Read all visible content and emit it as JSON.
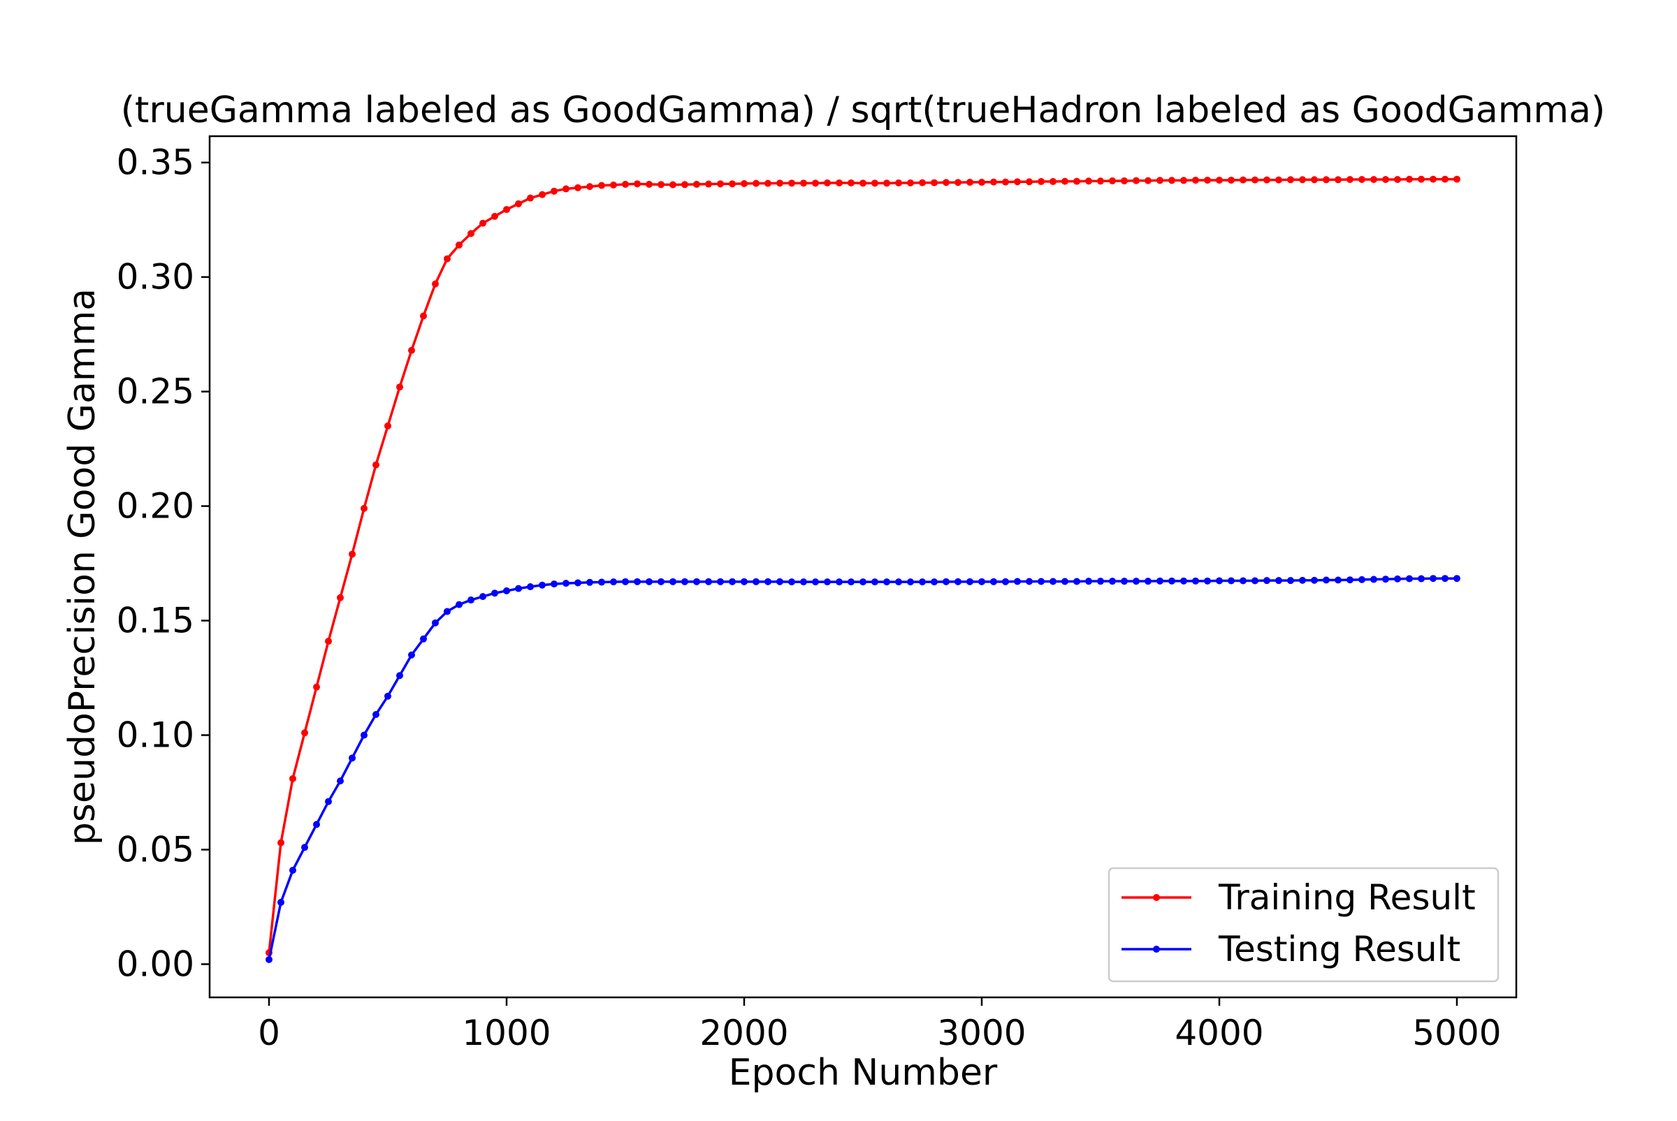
{
  "chart_data": {
    "type": "line",
    "title": "(trueGamma labeled as GoodGamma) / sqrt(trueHadron labeled as GoodGamma)",
    "xlabel": "Epoch Number",
    "ylabel": "pseudoPrecision Good Gamma",
    "xlim": [
      -250,
      5250
    ],
    "ylim": [
      -0.0145,
      0.3615
    ],
    "xticks": [
      0,
      1000,
      2000,
      3000,
      4000,
      5000
    ],
    "xtick_labels": [
      "0",
      "1000",
      "2000",
      "3000",
      "4000",
      "5000"
    ],
    "yticks": [
      0.0,
      0.05,
      0.1,
      0.15,
      0.2,
      0.25,
      0.3,
      0.35
    ],
    "ytick_labels": [
      "0.00",
      "0.05",
      "0.10",
      "0.15",
      "0.20",
      "0.25",
      "0.30",
      "0.35"
    ],
    "grid": false,
    "legend_position": "lower-right",
    "series": [
      {
        "name": "Training Result",
        "color": "#ff0000",
        "x": [
          0,
          50,
          100,
          150,
          200,
          250,
          300,
          350,
          400,
          450,
          500,
          550,
          600,
          650,
          700,
          750,
          800,
          850,
          900,
          950,
          1000,
          1050,
          1100,
          1150,
          1200,
          1250,
          1300,
          1350,
          1400,
          1450,
          1500,
          1550,
          1600,
          1650,
          1700,
          1750,
          1800,
          1850,
          1900,
          1950,
          2000,
          2050,
          2100,
          2150,
          2200,
          2250,
          2300,
          2350,
          2400,
          2450,
          2500,
          2550,
          2600,
          2650,
          2700,
          2750,
          2800,
          2850,
          2900,
          2950,
          3000,
          3050,
          3100,
          3150,
          3200,
          3250,
          3300,
          3350,
          3400,
          3450,
          3500,
          3550,
          3600,
          3650,
          3700,
          3750,
          3800,
          3850,
          3900,
          3950,
          4000,
          4050,
          4100,
          4150,
          4200,
          4250,
          4300,
          4350,
          4400,
          4450,
          4500,
          4550,
          4600,
          4650,
          4700,
          4750,
          4800,
          4850,
          4900,
          4950,
          5000
        ],
        "values": [
          0.005,
          0.053,
          0.081,
          0.101,
          0.121,
          0.141,
          0.16,
          0.179,
          0.199,
          0.218,
          0.235,
          0.252,
          0.268,
          0.283,
          0.297,
          0.308,
          0.314,
          0.319,
          0.3235,
          0.3265,
          0.3295,
          0.332,
          0.3345,
          0.336,
          0.3375,
          0.3385,
          0.339,
          0.3395,
          0.34,
          0.3402,
          0.3405,
          0.3407,
          0.3405,
          0.3404,
          0.3403,
          0.3404,
          0.3405,
          0.3406,
          0.3407,
          0.3407,
          0.3408,
          0.3409,
          0.3409,
          0.341,
          0.341,
          0.341,
          0.341,
          0.3411,
          0.3411,
          0.3411,
          0.341,
          0.341,
          0.341,
          0.3411,
          0.3411,
          0.3412,
          0.3412,
          0.3413,
          0.3413,
          0.3414,
          0.3414,
          0.3415,
          0.3415,
          0.3416,
          0.3416,
          0.3417,
          0.3417,
          0.3418,
          0.3418,
          0.3419,
          0.3419,
          0.342,
          0.342,
          0.3421,
          0.3421,
          0.3422,
          0.3422,
          0.3422,
          0.3423,
          0.3423,
          0.3423,
          0.3423,
          0.3424,
          0.3424,
          0.3424,
          0.3424,
          0.3425,
          0.3425,
          0.3425,
          0.3425,
          0.3425,
          0.3426,
          0.3426,
          0.3426,
          0.3426,
          0.3426,
          0.3427,
          0.3427,
          0.3427,
          0.3427,
          0.3427
        ]
      },
      {
        "name": "Testing Result",
        "color": "#0000ff",
        "x": [
          0,
          50,
          100,
          150,
          200,
          250,
          300,
          350,
          400,
          450,
          500,
          550,
          600,
          650,
          700,
          750,
          800,
          850,
          900,
          950,
          1000,
          1050,
          1100,
          1150,
          1200,
          1250,
          1300,
          1350,
          1400,
          1450,
          1500,
          1550,
          1600,
          1650,
          1700,
          1750,
          1800,
          1850,
          1900,
          1950,
          2000,
          2050,
          2100,
          2150,
          2200,
          2250,
          2300,
          2350,
          2400,
          2450,
          2500,
          2550,
          2600,
          2650,
          2700,
          2750,
          2800,
          2850,
          2900,
          2950,
          3000,
          3050,
          3100,
          3150,
          3200,
          3250,
          3300,
          3350,
          3400,
          3450,
          3500,
          3550,
          3600,
          3650,
          3700,
          3750,
          3800,
          3850,
          3900,
          3950,
          4000,
          4050,
          4100,
          4150,
          4200,
          4250,
          4300,
          4350,
          4400,
          4450,
          4500,
          4550,
          4600,
          4650,
          4700,
          4750,
          4800,
          4850,
          4900,
          4950,
          5000
        ],
        "values": [
          0.002,
          0.027,
          0.041,
          0.051,
          0.061,
          0.071,
          0.08,
          0.09,
          0.1,
          0.109,
          0.117,
          0.126,
          0.135,
          0.142,
          0.149,
          0.154,
          0.157,
          0.159,
          0.1605,
          0.162,
          0.163,
          0.164,
          0.1648,
          0.1655,
          0.166,
          0.1663,
          0.1665,
          0.1667,
          0.1668,
          0.1669,
          0.167,
          0.167,
          0.167,
          0.167,
          0.167,
          0.167,
          0.167,
          0.167,
          0.167,
          0.167,
          0.167,
          0.167,
          0.167,
          0.167,
          0.1669,
          0.1669,
          0.1669,
          0.1669,
          0.1669,
          0.1669,
          0.1669,
          0.1669,
          0.1669,
          0.1669,
          0.1669,
          0.1669,
          0.1669,
          0.167,
          0.167,
          0.167,
          0.167,
          0.167,
          0.167,
          0.1671,
          0.1671,
          0.1671,
          0.1671,
          0.1671,
          0.1671,
          0.1672,
          0.1672,
          0.1672,
          0.1672,
          0.1672,
          0.1672,
          0.1673,
          0.1673,
          0.1673,
          0.1673,
          0.1673,
          0.1674,
          0.1674,
          0.1674,
          0.1674,
          0.1675,
          0.1675,
          0.1675,
          0.1676,
          0.1676,
          0.1677,
          0.1677,
          0.1678,
          0.1679,
          0.168,
          0.1681,
          0.1682,
          0.1683,
          0.1683,
          0.1684,
          0.1684,
          0.1684
        ]
      }
    ]
  }
}
